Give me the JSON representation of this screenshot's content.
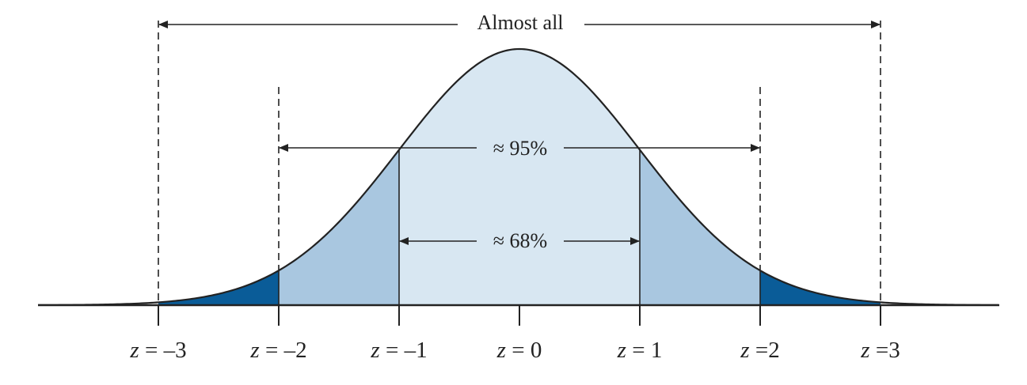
{
  "colors": {
    "center_band": "#d8e7f2",
    "inner_tails": "#a9c7e0",
    "outer_tails": "#0a5c98",
    "line": "#222222"
  },
  "annotations": {
    "almost_all": "Almost all",
    "within_2": "≈ 95%",
    "within_1": "≈ 68%"
  },
  "z_labels": [
    {
      "z": -3,
      "var": "z",
      "rest": " = –3"
    },
    {
      "z": -2,
      "var": "z",
      "rest": " = –2"
    },
    {
      "z": -1,
      "var": "z",
      "rest": " = –1"
    },
    {
      "z": 0,
      "var": "z",
      "rest": " = 0"
    },
    {
      "z": 1,
      "var": "z",
      "rest": " = 1"
    },
    {
      "z": 2,
      "var": "z",
      "rest": " =2"
    },
    {
      "z": 3,
      "var": "z",
      "rest": " =3"
    }
  ]
}
